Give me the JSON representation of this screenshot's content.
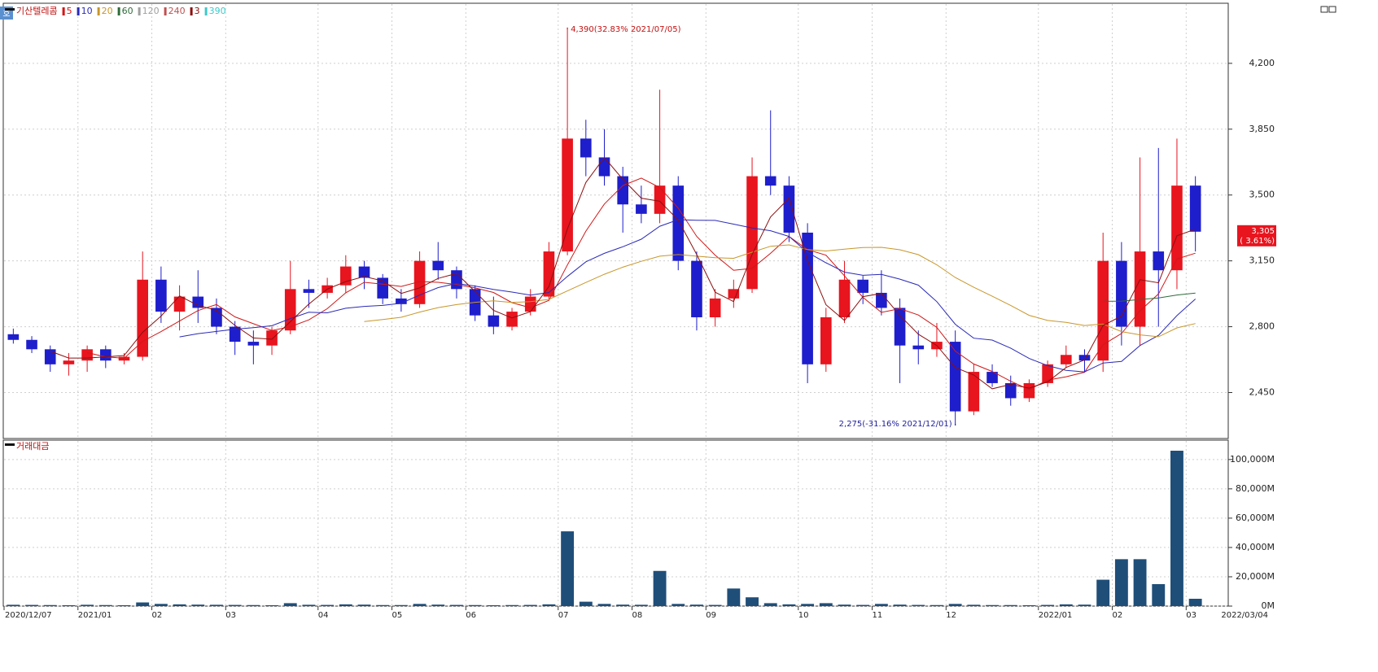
{
  "badge": "호",
  "chart_data": [
    {
      "type": "candlestick",
      "title": "기산텔레콤",
      "categories": [
        "2020/12/07",
        null,
        null,
        null,
        "2021/01",
        null,
        null,
        null,
        "02",
        null,
        null,
        null,
        "03",
        null,
        null,
        null,
        null,
        "04",
        null,
        null,
        null,
        "05",
        null,
        null,
        null,
        "06",
        null,
        null,
        null,
        null,
        "07",
        null,
        null,
        null,
        "08",
        null,
        null,
        null,
        "09",
        null,
        null,
        null,
        null,
        "10",
        null,
        null,
        null,
        "11",
        null,
        null,
        null,
        "12",
        null,
        null,
        null,
        null,
        "2022/01",
        null,
        null,
        null,
        "02",
        null,
        null,
        null,
        "03"
      ],
      "open": [
        2760,
        2730,
        2680,
        2600,
        2620,
        2680,
        2620,
        2640,
        3050,
        2880,
        2960,
        2900,
        2800,
        2720,
        2700,
        2780,
        3000,
        2980,
        3020,
        3120,
        3060,
        2950,
        2920,
        3150,
        3100,
        3000,
        2860,
        2800,
        2880,
        2960,
        3200,
        3800,
        3700,
        3600,
        3450,
        3400,
        3550,
        3150,
        2850,
        2950,
        3000,
        3600,
        3550,
        3300,
        2600,
        2850,
        3050,
        2980,
        2900,
        2700,
        2680,
        2720,
        2350,
        2560,
        2500,
        2420,
        2500,
        2600,
        2650,
        2620,
        3150,
        2800,
        3200,
        3100,
        3550
      ],
      "high": [
        2790,
        2750,
        2700,
        2660,
        2700,
        2700,
        2660,
        3200,
        3120,
        3020,
        3100,
        2950,
        2830,
        2780,
        2800,
        3150,
        3050,
        3060,
        3180,
        3150,
        3080,
        3000,
        3200,
        3250,
        3120,
        3020,
        2960,
        2900,
        3000,
        3250,
        4390,
        3900,
        3850,
        3650,
        3550,
        4060,
        3600,
        3200,
        3000,
        3050,
        3700,
        3950,
        3600,
        3350,
        2900,
        3150,
        3070,
        3100,
        2950,
        2780,
        2820,
        2780,
        2600,
        2600,
        2540,
        2520,
        2620,
        2700,
        2680,
        3300,
        3250,
        3700,
        3750,
        3800,
        3600
      ],
      "low": [
        2710,
        2660,
        2560,
        2540,
        2560,
        2580,
        2600,
        2620,
        2820,
        2780,
        2820,
        2760,
        2650,
        2600,
        2650,
        2760,
        2900,
        2950,
        2980,
        3000,
        2920,
        2880,
        2900,
        3050,
        2950,
        2830,
        2760,
        2780,
        2860,
        2940,
        3180,
        3600,
        3550,
        3300,
        3350,
        3350,
        3100,
        2780,
        2800,
        2900,
        2980,
        3500,
        3250,
        2500,
        2560,
        2820,
        2920,
        2860,
        2500,
        2600,
        2640,
        2275,
        2330,
        2480,
        2380,
        2400,
        2480,
        2580,
        2560,
        2560,
        2700,
        2700,
        2800,
        3000,
        3200
      ],
      "close": [
        2730,
        2680,
        2600,
        2620,
        2680,
        2620,
        2640,
        3050,
        2880,
        2960,
        2900,
        2800,
        2720,
        2700,
        2780,
        3000,
        2980,
        3020,
        3120,
        3060,
        2950,
        2920,
        3150,
        3100,
        3000,
        2860,
        2800,
        2880,
        2960,
        3200,
        3800,
        3700,
        3600,
        3450,
        3400,
        3550,
        3150,
        2850,
        2950,
        3000,
        3600,
        3550,
        3300,
        2600,
        2850,
        3050,
        2980,
        2900,
        2700,
        2680,
        2720,
        2350,
        2560,
        2500,
        2420,
        2500,
        2600,
        2650,
        2620,
        3150,
        2800,
        3200,
        3100,
        3550,
        3305
      ],
      "up_color": "#e8141e",
      "down_color": "#1e1ecc",
      "ylim": [
        2210,
        4515
      ],
      "yticks": [
        {
          "value": 2450,
          "label": "2,450"
        },
        {
          "value": 2800,
          "label": "2,800"
        },
        {
          "value": 3150,
          "label": "3,150"
        },
        {
          "value": 3500,
          "label": "3,500"
        },
        {
          "value": 3850,
          "label": "3,850"
        },
        {
          "value": 4200,
          "label": "4,200"
        }
      ],
      "grid": true,
      "moving_averages": [
        {
          "period": 5,
          "color": "#d01818"
        },
        {
          "period": 10,
          "color": "#2a2ab8"
        },
        {
          "period": 20,
          "color": "#c8962a"
        },
        {
          "period": 60,
          "color": "#2e6b3a"
        },
        {
          "period": 120,
          "color": "#a0a0a0"
        },
        {
          "period": 240,
          "color": "#c05050"
        },
        {
          "period": 3,
          "color": "#8b1010"
        },
        {
          "period": 390,
          "color": "#40c8c8"
        }
      ],
      "annotations": [
        {
          "text": "4,390(32.83% 2021/07/05)",
          "index": 30,
          "at": "high"
        },
        {
          "text": "2,275(-31.16% 2021/12/01)",
          "index": 51,
          "at": "low"
        }
      ],
      "last_price": {
        "value": 3305,
        "label": "3,305",
        "change_label": "( 3.61%)"
      },
      "end_date": "2022/03/04"
    },
    {
      "type": "bar",
      "title": "거래대금",
      "color": "#1f4e79",
      "values": [
        900,
        800,
        700,
        600,
        900,
        700,
        600,
        2500,
        1500,
        1200,
        1000,
        900,
        800,
        700,
        600,
        2000,
        900,
        800,
        1200,
        1000,
        700,
        700,
        1500,
        1000,
        800,
        700,
        600,
        700,
        800,
        1200,
        51000,
        3000,
        1500,
        1000,
        900,
        24000,
        1500,
        1000,
        800,
        12000,
        6000,
        2000,
        1200,
        1500,
        2000,
        1000,
        800,
        1500,
        1000,
        800,
        700,
        1500,
        900,
        700,
        700,
        600,
        800,
        1200,
        1000,
        18000,
        32000,
        32000,
        15000,
        106000,
        5000
      ],
      "ylim": [
        0,
        111000
      ],
      "yticks": [
        {
          "value": 0,
          "label": "0M"
        },
        {
          "value": 20000,
          "label": "20,000M"
        },
        {
          "value": 40000,
          "label": "40,000M"
        },
        {
          "value": 60000,
          "label": "60,000M"
        },
        {
          "value": 80000,
          "label": "80,000M"
        },
        {
          "value": 100000,
          "label": "100,000M"
        }
      ]
    }
  ]
}
